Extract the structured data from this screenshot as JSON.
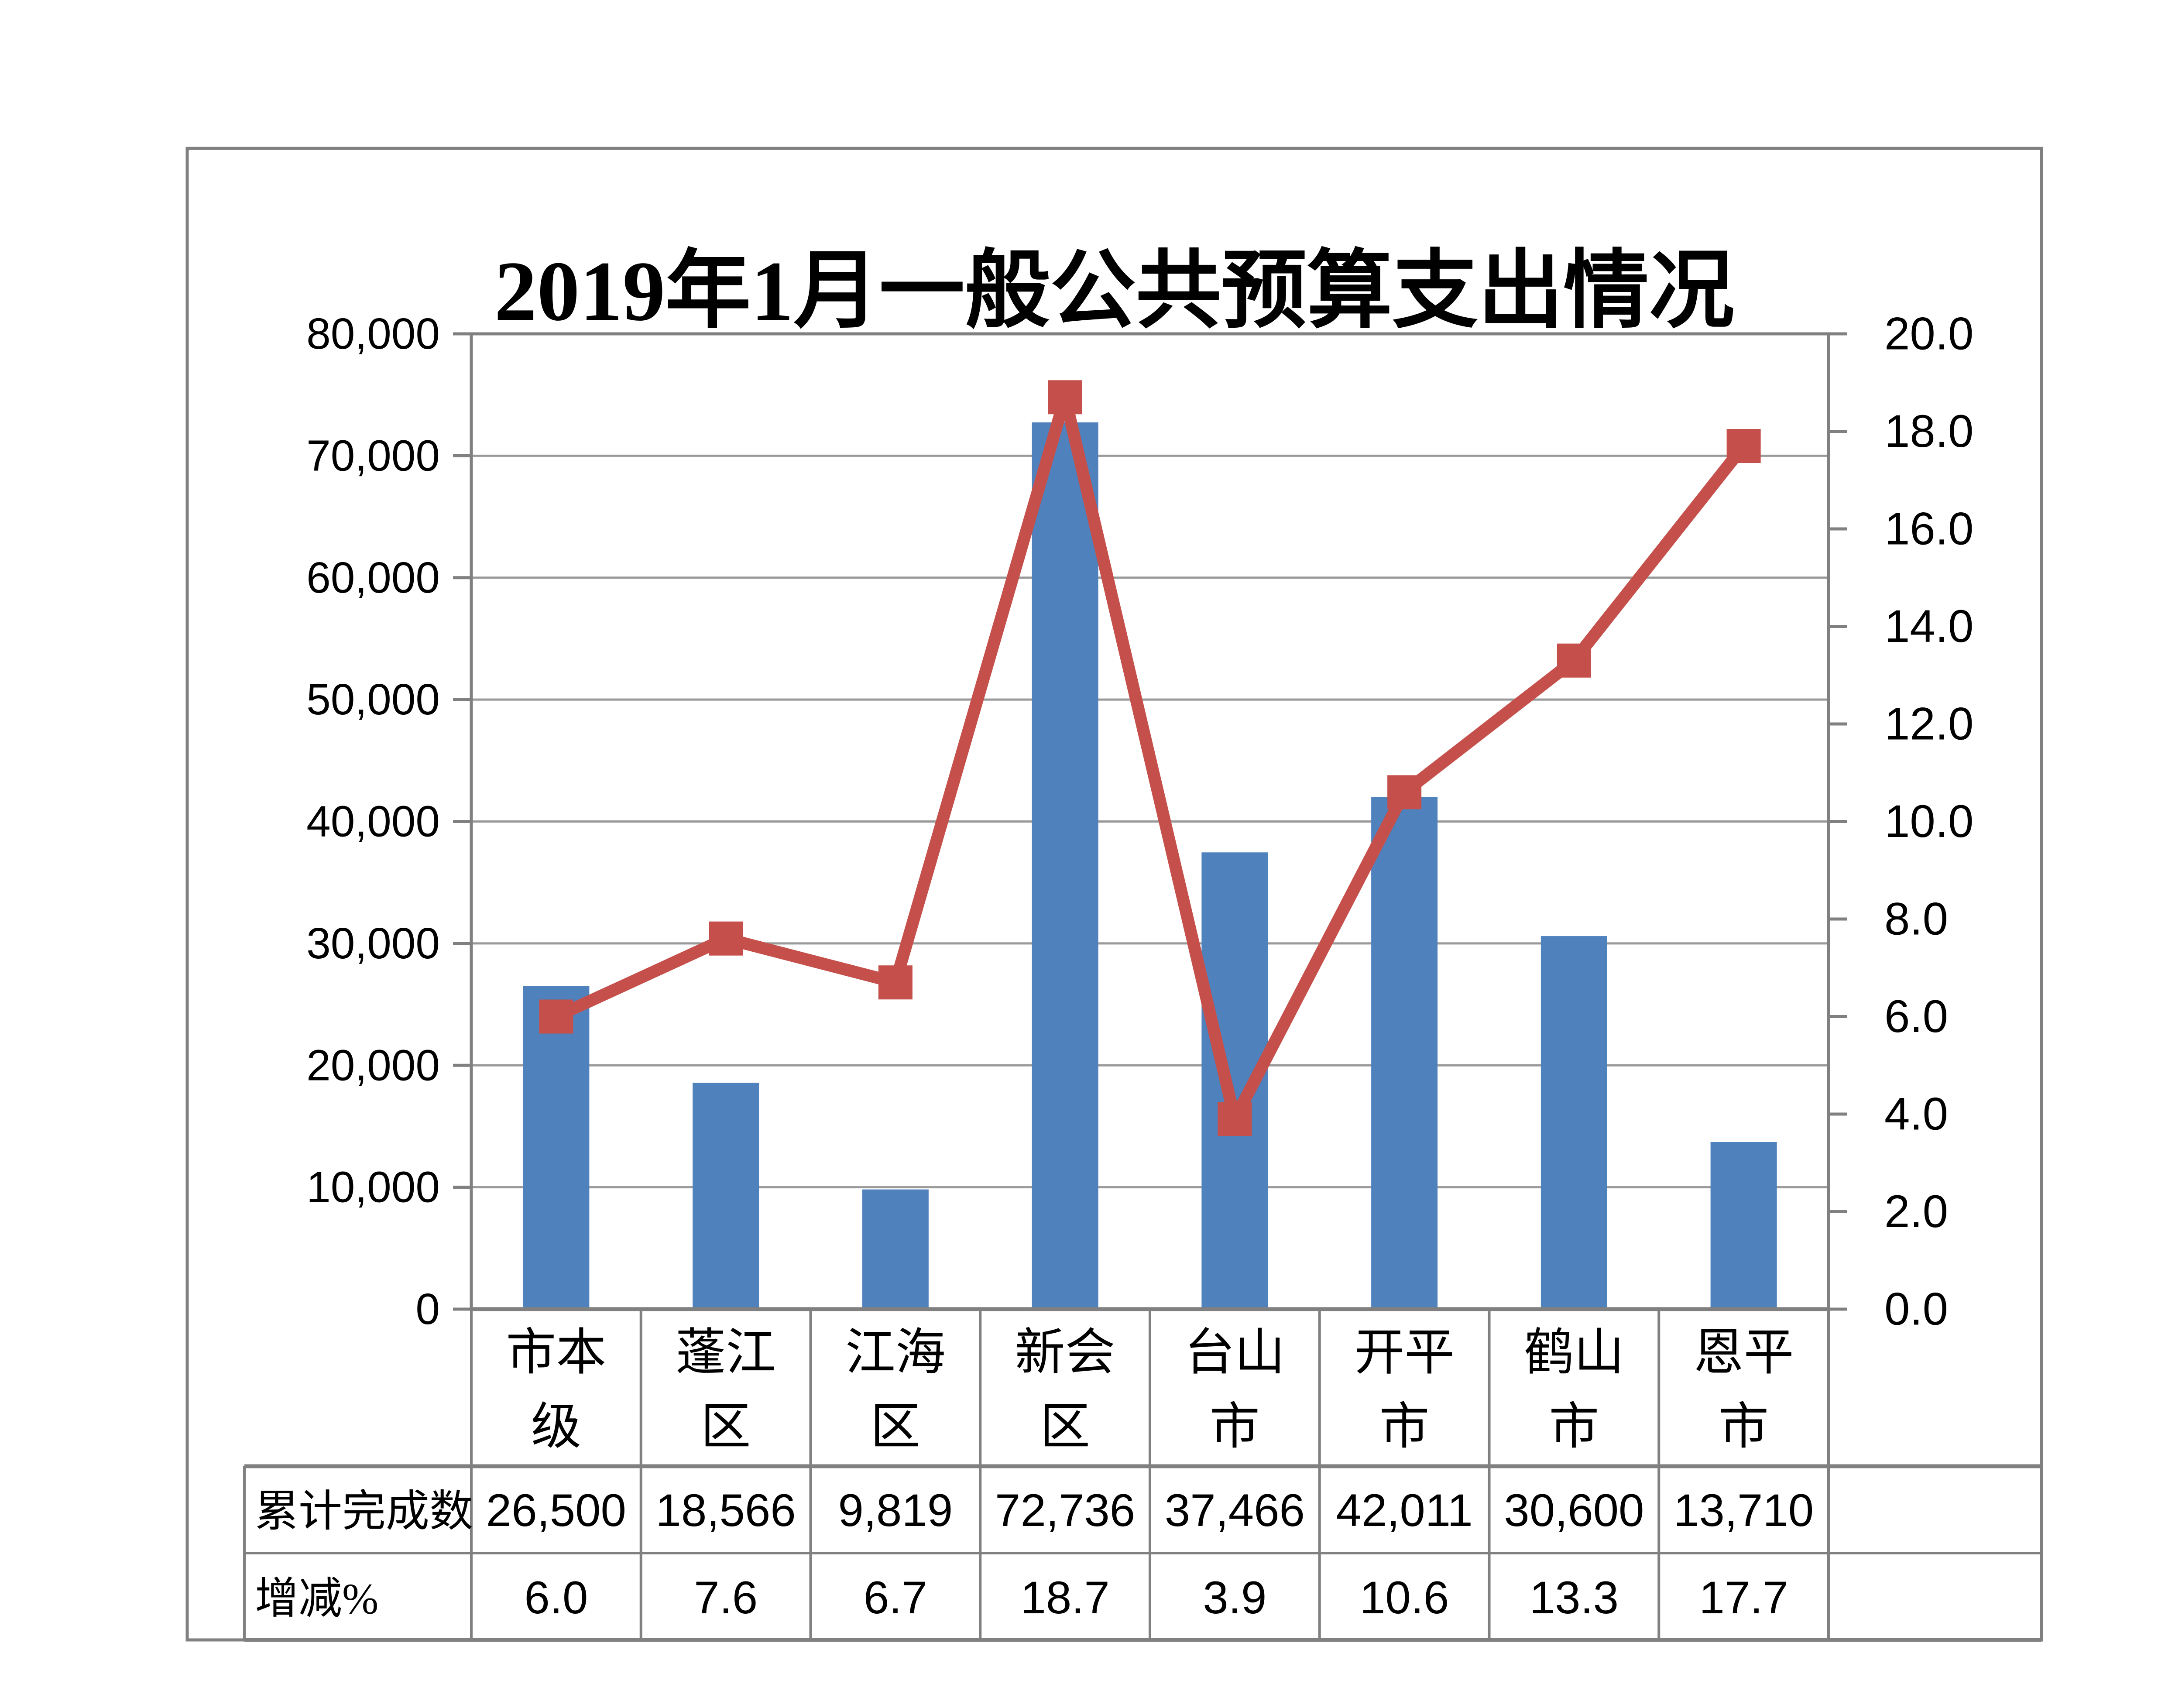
{
  "title": "2019年1月一般公共预算支出情况",
  "chart_data": {
    "type": "bar+line combo",
    "title": "2019年1月一般公共预算支出情况",
    "categories": [
      "市本级",
      "蓬江区",
      "江海区",
      "新会区",
      "台山市",
      "开平市",
      "鹤山市",
      "恩平市"
    ],
    "series": [
      {
        "name": "累计完成数",
        "type": "bar",
        "axis": "left",
        "color": "#4F81BD",
        "values": [
          26500,
          18566,
          9819,
          72736,
          37466,
          42011,
          30600,
          13710
        ]
      },
      {
        "name": "增减%",
        "type": "line",
        "axis": "right",
        "color": "#C5504B",
        "marker": "square",
        "values": [
          6.0,
          7.6,
          6.7,
          18.7,
          3.9,
          10.6,
          13.3,
          17.7
        ]
      }
    ],
    "left_axis": {
      "min": 0,
      "max": 80000,
      "step": 10000,
      "tick_labels": [
        "0",
        "10,000",
        "20,000",
        "30,000",
        "40,000",
        "50,000",
        "60,000",
        "70,000",
        "80,000"
      ]
    },
    "right_axis": {
      "min": 0,
      "max": 20,
      "step": 2,
      "tick_labels": [
        "0.0",
        "2.0",
        "4.0",
        "6.0",
        "8.0",
        "10.0",
        "12.0",
        "14.0",
        "16.0",
        "18.0",
        "20.0"
      ]
    },
    "gridlines": "horizontal at left-axis steps",
    "legend_position": "none"
  },
  "data_table": {
    "rows": [
      {
        "header": "累计完成数",
        "values": [
          "26,500",
          "18,566",
          "9,819",
          "72,736",
          "37,466",
          "42,011",
          "30,600",
          "13,710"
        ]
      },
      {
        "header": "增减%",
        "values": [
          "6.0",
          "7.6",
          "6.7",
          "18.7",
          "3.9",
          "10.6",
          "13.3",
          "17.7"
        ]
      }
    ]
  },
  "colors": {
    "bar": "#4F81BD",
    "line": "#C5504B",
    "gridline": "#999999",
    "border": "#808080",
    "text": "#000000",
    "background": "#FFFFFF"
  }
}
